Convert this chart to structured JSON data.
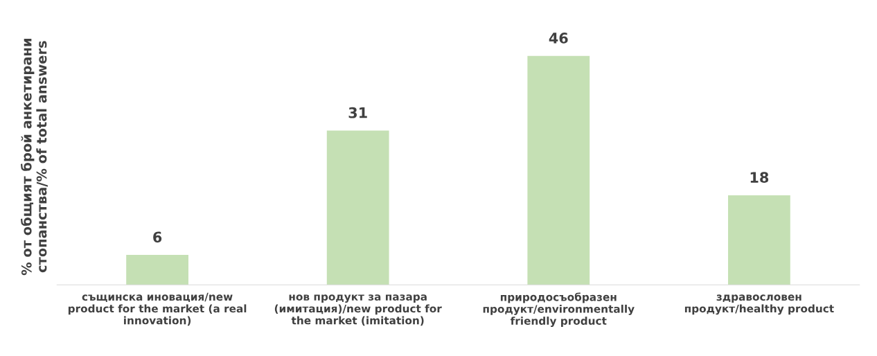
{
  "chart_data": {
    "type": "bar",
    "ylabel": "% от общият брой анкетирани\nстопанства/% of total answers",
    "categories": [
      "същинска иновация/new\nproduct for the market (a real\ninnovation)",
      "нов продукт за пазара\n(имитация)/new product for\nthe market (imitation)",
      "природосъобразен\nпродукт/environmentally\nfriendly product",
      "здравословен\nпродукт/healthy product"
    ],
    "values": [
      6,
      31,
      46,
      18
    ],
    "color": "#c5e0b4",
    "data_labels": true,
    "grid": false,
    "legend": false,
    "tick_labels": "x"
  }
}
